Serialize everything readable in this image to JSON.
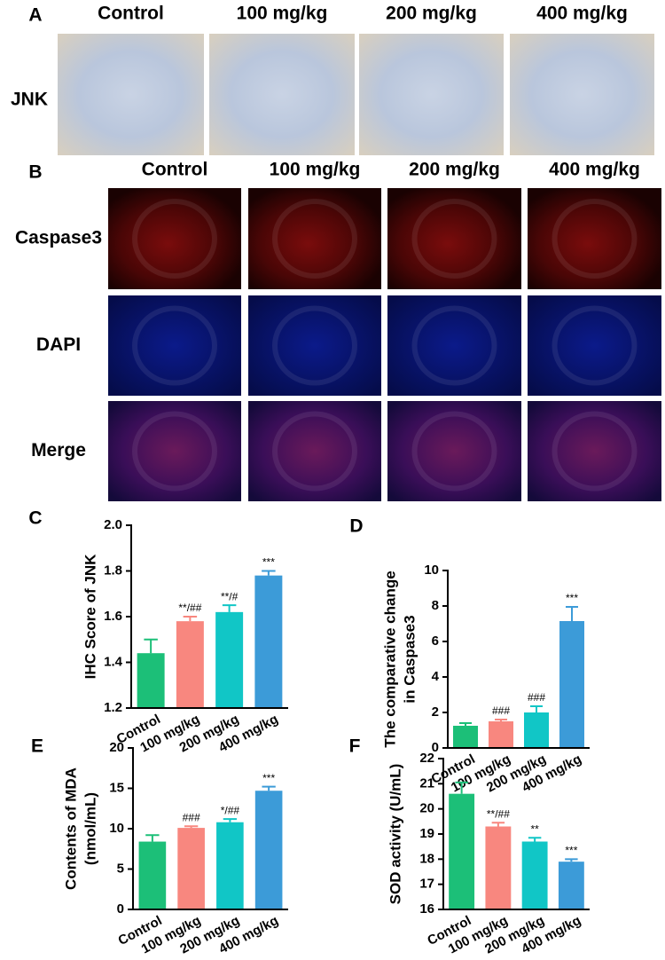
{
  "panel_a": {
    "label": "A",
    "columns": [
      "Control",
      "100 mg/kg",
      "200 mg/kg",
      "400 mg/kg"
    ],
    "rows": [
      "JNK"
    ]
  },
  "panel_b": {
    "label": "B",
    "columns": [
      "Control",
      "100 mg/kg",
      "200 mg/kg",
      "400 mg/kg"
    ],
    "rows": [
      "Caspase3",
      "DAPI",
      "Merge"
    ]
  },
  "chart_data": [
    {
      "type": "bar",
      "label": "C",
      "ylabel": [
        "IHC Score of JNK"
      ],
      "categories": [
        "Control",
        "100 mg/kg",
        "200 mg/kg",
        "400 mg/kg"
      ],
      "values": [
        1.44,
        1.58,
        1.62,
        1.78
      ],
      "errors": [
        0.06,
        0.02,
        0.03,
        0.02
      ],
      "annotations": [
        null,
        "**/##",
        "**/#",
        "***"
      ],
      "colors": [
        "#1cbf78",
        "#f8877f",
        "#11c6c6",
        "#3c9bd8"
      ],
      "ylim": [
        1.2,
        2.0
      ],
      "yticks": [
        1.2,
        1.4,
        1.6,
        1.8,
        {
          "value": 2.0,
          "label": "2.0"
        }
      ]
    },
    {
      "type": "bar",
      "label": "D",
      "ylabel": [
        "The comparative change",
        "in Caspase3"
      ],
      "categories": [
        "Control",
        "100 mg/kg",
        "200 mg/kg",
        "400 mg/kg"
      ],
      "values": [
        1.25,
        1.5,
        2.0,
        7.15
      ],
      "errors": [
        0.15,
        0.1,
        0.35,
        0.8
      ],
      "annotations": [
        null,
        "###",
        "###",
        "***"
      ],
      "colors": [
        "#1cbf78",
        "#f8877f",
        "#11c6c6",
        "#3c9bd8"
      ],
      "ylim": [
        0,
        10
      ],
      "yticks": [
        0,
        2,
        4,
        6,
        8,
        10
      ]
    },
    {
      "type": "bar",
      "label": "E",
      "ylabel": [
        "Contents of MDA",
        "(nmol/mL)"
      ],
      "categories": [
        "Control",
        "100 mg/kg",
        "200 mg/kg",
        "400 mg/kg"
      ],
      "values": [
        8.4,
        10.1,
        10.8,
        14.7
      ],
      "errors": [
        0.8,
        0.2,
        0.4,
        0.5
      ],
      "annotations": [
        null,
        "###",
        "*/##",
        "***"
      ],
      "colors": [
        "#1cbf78",
        "#f8877f",
        "#11c6c6",
        "#3c9bd8"
      ],
      "ylim": [
        0,
        20
      ],
      "yticks": [
        0,
        5,
        10,
        15,
        20
      ]
    },
    {
      "type": "bar",
      "label": "F",
      "ylabel": [
        "SOD activity (U/mL)"
      ],
      "categories": [
        "Control",
        "100 mg/kg",
        "200 mg/kg",
        "400 mg/kg"
      ],
      "values": [
        20.6,
        19.3,
        18.7,
        17.9
      ],
      "errors": [
        0.45,
        0.15,
        0.15,
        0.1
      ],
      "annotations": [
        null,
        "**/##",
        "**",
        "***"
      ],
      "colors": [
        "#1cbf78",
        "#f8877f",
        "#11c6c6",
        "#3c9bd8"
      ],
      "ylim": [
        16,
        22
      ],
      "yticks": [
        16,
        17,
        18,
        19,
        20,
        21,
        22
      ]
    }
  ]
}
